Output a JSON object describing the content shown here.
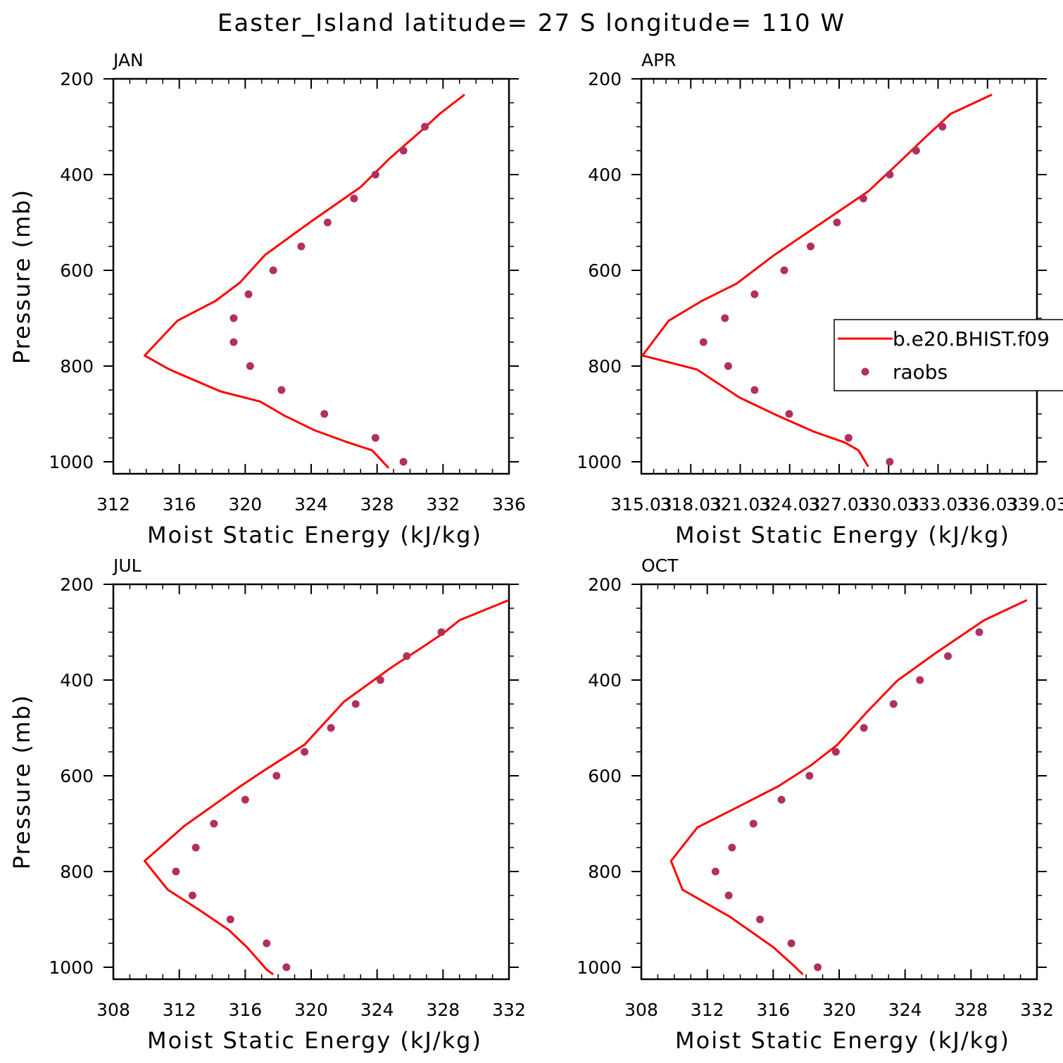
{
  "title": "Easter_Island  latitude= 27 S longitude= 110 W",
  "colors": {
    "model": "#ff0000",
    "obs": "#b03060",
    "axis": "#000000"
  },
  "legend": {
    "items": [
      {
        "label": "b.e20.BHIST.f09",
        "kind": "line"
      },
      {
        "label": "raobs",
        "kind": "marker"
      }
    ]
  },
  "chart_data": [
    {
      "type": "line",
      "panel": "JAN",
      "xlabel": "Moist Static Energy (kJ/kg)",
      "ylabel": "Pressure (mb)",
      "xlim": [
        312,
        336
      ],
      "ylim": [
        1025,
        200
      ],
      "xticks": [
        "312",
        "316",
        "320",
        "324",
        "328",
        "332",
        "336"
      ],
      "yticks": [
        "200",
        "400",
        "600",
        "800",
        "1000"
      ],
      "series": [
        {
          "name": "b.e20.BHIST.f09",
          "style": "line",
          "x": [
            333.3,
            331.8,
            330.7,
            328.8,
            327.0,
            324.0,
            321.2,
            319.7,
            318.2,
            315.9,
            313.9,
            315.4,
            318.5,
            320.9,
            322.4,
            324.2,
            326.1,
            327.7,
            328.7
          ],
          "y": [
            233,
            273,
            308,
            365,
            426,
            498,
            568,
            625,
            664,
            705,
            778,
            807,
            853,
            874,
            904,
            934,
            958,
            976,
            1013
          ]
        },
        {
          "name": "raobs",
          "style": "marker",
          "x": [
            330.9,
            329.6,
            327.9,
            326.6,
            325.0,
            323.4,
            321.7,
            320.2,
            319.3,
            319.3,
            320.3,
            322.2,
            324.8,
            327.9,
            329.6
          ],
          "y": [
            300,
            350,
            400,
            450,
            500,
            550,
            600,
            650,
            700,
            750,
            800,
            850,
            900,
            950,
            1000
          ]
        }
      ]
    },
    {
      "type": "line",
      "panel": "APR",
      "xlabel": "Moist Static Energy (kJ/kg)",
      "ylabel": "",
      "xlim": [
        315.03,
        339.03
      ],
      "ylim": [
        1025,
        200
      ],
      "xticks": [
        "315.03",
        "318.03",
        "321.03",
        "324.03",
        "327.03",
        "330.03",
        "333.03",
        "336.03",
        "339.03"
      ],
      "yticks": [
        "200",
        "400",
        "600",
        "800",
        "1000"
      ],
      "series": [
        {
          "name": "b.e20.BHIST.f09",
          "style": "line",
          "x": [
            336.3,
            333.8,
            332.2,
            330.5,
            328.8,
            326.1,
            323.1,
            320.8,
            318.7,
            316.7,
            315.1,
            318.4,
            321.0,
            323.2,
            325.5,
            327.4,
            328.2,
            328.8
          ],
          "y": [
            233,
            273,
            324,
            380,
            435,
            498,
            568,
            628,
            664,
            705,
            778,
            807,
            866,
            902,
            937,
            960,
            976,
            1010
          ]
        },
        {
          "name": "raobs",
          "style": "marker",
          "x": [
            333.3,
            331.7,
            330.1,
            328.5,
            326.9,
            325.3,
            323.7,
            321.9,
            320.1,
            318.8,
            320.3,
            321.9,
            324.0,
            327.6,
            330.1
          ],
          "y": [
            300,
            350,
            400,
            450,
            500,
            550,
            600,
            650,
            700,
            750,
            800,
            850,
            900,
            950,
            1000
          ]
        }
      ]
    },
    {
      "type": "line",
      "panel": "JUL",
      "xlabel": "Moist Static Energy (kJ/kg)",
      "ylabel": "Pressure (mb)",
      "xlim": [
        308,
        332
      ],
      "ylim": [
        1025,
        200
      ],
      "xticks": [
        "308",
        "312",
        "316",
        "320",
        "324",
        "328",
        "332"
      ],
      "yticks": [
        "200",
        "400",
        "600",
        "800",
        "1000"
      ],
      "series": [
        {
          "name": "b.e20.BHIST.f09",
          "style": "line",
          "x": [
            332.0,
            329.0,
            328.1,
            326.9,
            324.9,
            322.0,
            319.6,
            317.1,
            315.7,
            312.3,
            309.9,
            311.3,
            313.2,
            315.0,
            316.1,
            316.9,
            317.3,
            317.7
          ],
          "y": [
            233,
            275,
            300,
            328,
            373,
            445,
            535,
            590,
            622,
            705,
            778,
            838,
            880,
            922,
            958,
            989,
            1005,
            1015
          ]
        },
        {
          "name": "raobs",
          "style": "marker",
          "x": [
            327.9,
            325.8,
            324.2,
            322.7,
            321.2,
            319.6,
            317.9,
            316.0,
            314.1,
            313.0,
            311.8,
            312.8,
            315.1,
            317.3,
            318.5
          ],
          "y": [
            300,
            350,
            400,
            450,
            500,
            550,
            600,
            650,
            700,
            750,
            800,
            850,
            900,
            950,
            1000
          ]
        }
      ]
    },
    {
      "type": "line",
      "panel": "OCT",
      "xlabel": "Moist Static Energy (kJ/kg)",
      "ylabel": "",
      "xlim": [
        308,
        332
      ],
      "ylim": [
        1025,
        200
      ],
      "xticks": [
        "308",
        "312",
        "316",
        "320",
        "324",
        "328",
        "332"
      ],
      "yticks": [
        "200",
        "400",
        "600",
        "800",
        "1000"
      ],
      "series": [
        {
          "name": "b.e20.BHIST.f09",
          "style": "line",
          "x": [
            331.4,
            328.8,
            327.3,
            325.8,
            323.5,
            321.6,
            319.9,
            318.3,
            316.3,
            313.7,
            311.4,
            309.8,
            310.5,
            313.4,
            316.0,
            317.2,
            317.8
          ],
          "y": [
            233,
            275,
            310,
            345,
            402,
            470,
            535,
            578,
            622,
            668,
            708,
            778,
            838,
            895,
            958,
            995,
            1015
          ]
        },
        {
          "name": "raobs",
          "style": "marker",
          "x": [
            328.5,
            326.6,
            324.9,
            323.3,
            321.5,
            319.8,
            318.2,
            316.5,
            314.8,
            313.5,
            312.5,
            313.3,
            315.2,
            317.1,
            318.7
          ],
          "y": [
            300,
            350,
            400,
            450,
            500,
            550,
            600,
            650,
            700,
            750,
            800,
            850,
            900,
            950,
            1000
          ]
        }
      ]
    }
  ]
}
